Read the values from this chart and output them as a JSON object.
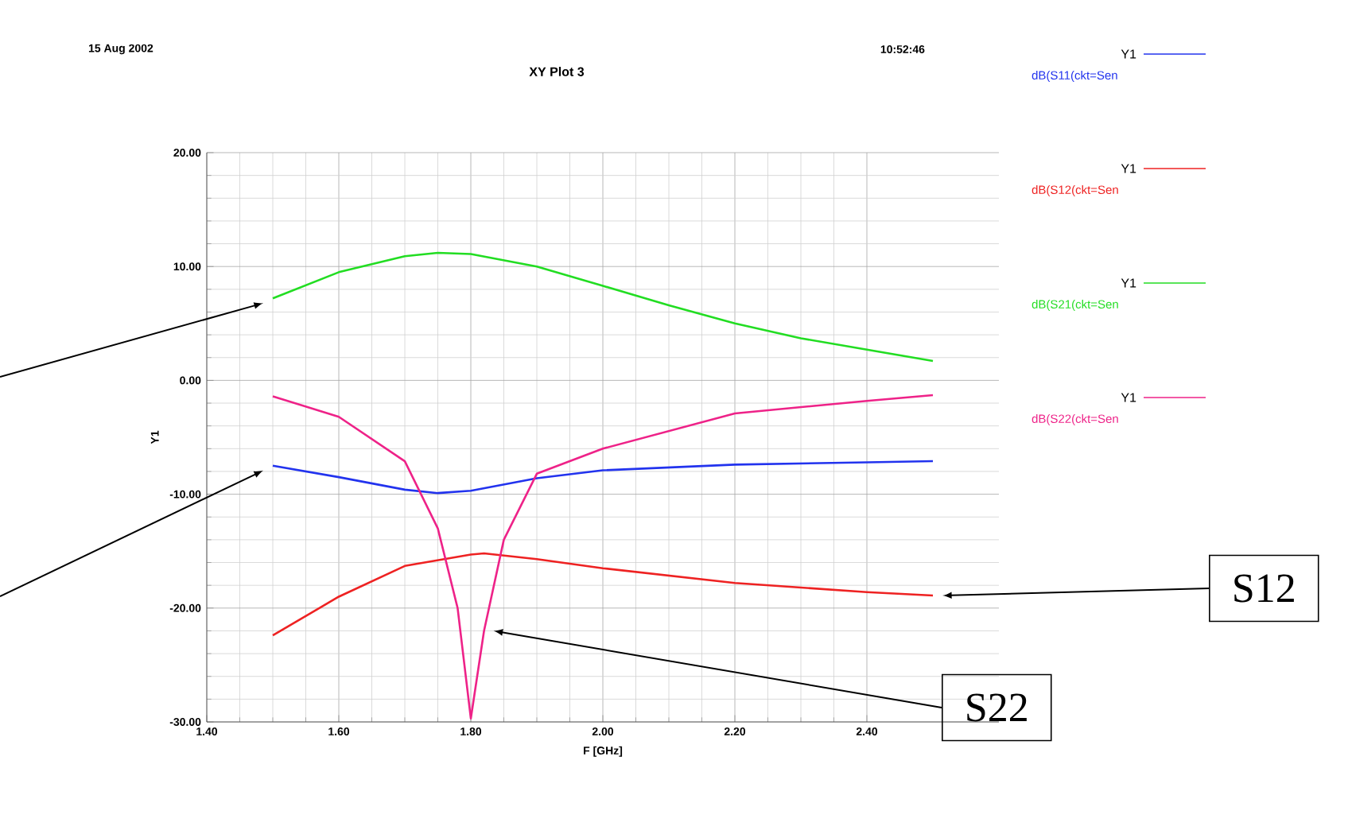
{
  "chart_data": {
    "type": "line",
    "title": "XY Plot 3",
    "xlabel": "F [GHz]",
    "ylabel": "Y1",
    "annotations": [
      "15 Aug 2002",
      "10:52:46",
      "S12",
      "S22"
    ],
    "xlim": [
      1.4,
      2.6
    ],
    "ylim": [
      -30,
      20
    ],
    "xticks": [
      {
        "value": 1.4,
        "label": "1.40"
      },
      {
        "value": 1.6,
        "label": "1.60"
      },
      {
        "value": 1.8,
        "label": "1.80"
      },
      {
        "value": 2.0,
        "label": "2.00"
      },
      {
        "value": 2.2,
        "label": "2.20"
      },
      {
        "value": 2.4,
        "label": "2.40"
      }
    ],
    "yticks": [
      {
        "value": -30,
        "label": "-30.00"
      },
      {
        "value": -20,
        "label": "-20.00"
      },
      {
        "value": -10,
        "label": "-10.00"
      },
      {
        "value": 0,
        "label": "0.00"
      },
      {
        "value": 10,
        "label": "10.00"
      },
      {
        "value": 20,
        "label": "20.00"
      }
    ],
    "grid": true,
    "legend": "right",
    "series": [
      {
        "name": "dB(S11(ckt=Sen",
        "color": "#2233ee",
        "x": [
          1.5,
          1.6,
          1.7,
          1.75,
          1.8,
          1.9,
          2.0,
          2.2,
          2.4,
          2.5
        ],
        "values": [
          -7.5,
          -8.5,
          -9.6,
          -9.9,
          -9.7,
          -8.6,
          -7.9,
          -7.4,
          -7.2,
          -7.1
        ]
      },
      {
        "name": "dB(S12(ckt=Sen",
        "color": "#ee2222",
        "x": [
          1.5,
          1.6,
          1.7,
          1.8,
          1.82,
          1.9,
          2.0,
          2.2,
          2.4,
          2.5
        ],
        "values": [
          -22.4,
          -19.0,
          -16.3,
          -15.3,
          -15.2,
          -15.7,
          -16.5,
          -17.8,
          -18.6,
          -18.9
        ]
      },
      {
        "name": "dB(S21(ckt=Sen",
        "color": "#22dd22",
        "x": [
          1.5,
          1.6,
          1.7,
          1.75,
          1.8,
          1.9,
          2.0,
          2.1,
          2.2,
          2.3,
          2.4,
          2.5
        ],
        "values": [
          7.2,
          9.5,
          10.9,
          11.2,
          11.1,
          10.0,
          8.3,
          6.6,
          5.0,
          3.7,
          2.7,
          1.7
        ]
      },
      {
        "name": "dB(S22(ckt=Sen",
        "color": "#ee2288",
        "x": [
          1.5,
          1.6,
          1.7,
          1.75,
          1.78,
          1.8,
          1.82,
          1.85,
          1.9,
          2.0,
          2.2,
          2.4,
          2.5
        ],
        "values": [
          -1.4,
          -3.2,
          -7.1,
          -13.0,
          -20.0,
          -29.7,
          -22.0,
          -14.0,
          -8.2,
          -6.0,
          -2.9,
          -1.8,
          -1.3
        ]
      }
    ]
  }
}
